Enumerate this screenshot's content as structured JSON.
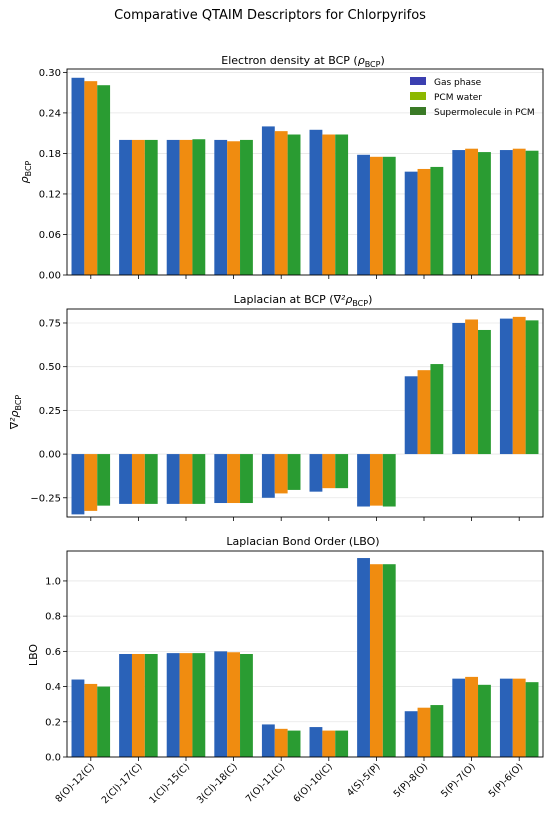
{
  "figure_title": "Comparative QTAIM Descriptors for Chlorpyrifos",
  "colors": {
    "gas": "#2a62b8",
    "pcm": "#f08c10",
    "super": "#2a9c32",
    "legend_gas": "#3b3fb0",
    "legend_pcm": "#8cb800",
    "legend_super": "#3a7a26"
  },
  "chart_data": [
    {
      "type": "bar",
      "title": "Electron density at BCP (ρBCP)",
      "title_main": "Electron density at BCP (",
      "title_sym": "ρ",
      "title_sub": "BCP",
      "title_end": ")",
      "ylabel": "ρBCP",
      "ylabel_main": "ρ",
      "ylabel_sub": "BCP",
      "ylim": [
        0,
        0.305
      ],
      "yticks": [
        "0.00",
        "0.06",
        "0.12",
        "0.18",
        "0.24",
        "0.30"
      ],
      "legend": {
        "placement": "top-right",
        "entries": [
          "Gas phase",
          "PCM water",
          "Supermolecule in PCM"
        ]
      },
      "categories": [
        "8(O)-12(C)",
        "2(Cl)-17(C)",
        "1(Cl)-15(C)",
        "3(Cl)-18(C)",
        "7(O)-11(C)",
        "6(O)-10(C)",
        "4(S)-5(P)",
        "5(P)-8(O)",
        "5(P)-7(O)",
        "5(P)-6(O)"
      ],
      "series": [
        {
          "name": "Gas phase",
          "values": [
            0.292,
            0.2,
            0.2,
            0.2,
            0.22,
            0.215,
            0.178,
            0.153,
            0.185,
            0.185
          ]
        },
        {
          "name": "PCM water",
          "values": [
            0.287,
            0.2,
            0.2,
            0.198,
            0.213,
            0.208,
            0.175,
            0.157,
            0.187,
            0.187
          ]
        },
        {
          "name": "Supermolecule in PCM",
          "values": [
            0.281,
            0.2,
            0.201,
            0.2,
            0.208,
            0.208,
            0.175,
            0.16,
            0.182,
            0.184
          ]
        }
      ]
    },
    {
      "type": "bar",
      "title": "Laplacian at BCP (∇²ρBCP)",
      "title_main": "Laplacian at BCP (",
      "title_sym": "∇²ρ",
      "title_sub": "BCP",
      "title_end": ")",
      "ylabel": "∇²ρBCP",
      "ylabel_main": "∇²ρ",
      "ylabel_sub": "BCP",
      "ylim": [
        -0.36,
        0.83
      ],
      "yticks": [
        "−0.25",
        "0.00",
        "0.25",
        "0.50",
        "0.75"
      ],
      "categories": [
        "8(O)-12(C)",
        "2(Cl)-17(C)",
        "1(Cl)-15(C)",
        "3(Cl)-18(C)",
        "7(O)-11(C)",
        "6(O)-10(C)",
        "4(S)-5(P)",
        "5(P)-8(O)",
        "5(P)-7(O)",
        "5(P)-6(O)"
      ],
      "series": [
        {
          "name": "Gas phase",
          "values": [
            -0.345,
            -0.285,
            -0.285,
            -0.28,
            -0.25,
            -0.215,
            -0.3,
            0.445,
            0.75,
            0.775
          ]
        },
        {
          "name": "PCM water",
          "values": [
            -0.325,
            -0.285,
            -0.285,
            -0.28,
            -0.225,
            -0.195,
            -0.295,
            0.48,
            0.77,
            0.785
          ]
        },
        {
          "name": "Supermolecule in PCM",
          "values": [
            -0.295,
            -0.285,
            -0.285,
            -0.28,
            -0.205,
            -0.195,
            -0.3,
            0.515,
            0.71,
            0.765
          ]
        }
      ]
    },
    {
      "type": "bar",
      "title": "Laplacian Bond Order (LBO)",
      "ylabel": "LBO",
      "ylim": [
        0,
        1.17
      ],
      "yticks": [
        "0.0",
        "0.2",
        "0.4",
        "0.6",
        "0.8",
        "1.0"
      ],
      "categories": [
        "8(O)-12(C)",
        "2(Cl)-17(C)",
        "1(Cl)-15(C)",
        "3(Cl)-18(C)",
        "7(O)-11(C)",
        "6(O)-10(C)",
        "4(S)-5(P)",
        "5(P)-8(O)",
        "5(P)-7(O)",
        "5(P)-6(O)"
      ],
      "series": [
        {
          "name": "Gas phase",
          "values": [
            0.44,
            0.585,
            0.59,
            0.6,
            0.185,
            0.17,
            1.13,
            0.26,
            0.445,
            0.445
          ]
        },
        {
          "name": "PCM water",
          "values": [
            0.415,
            0.585,
            0.59,
            0.595,
            0.16,
            0.15,
            1.095,
            0.28,
            0.455,
            0.445
          ]
        },
        {
          "name": "Supermolecule in PCM",
          "values": [
            0.4,
            0.585,
            0.59,
            0.585,
            0.15,
            0.15,
            1.095,
            0.295,
            0.41,
            0.425
          ]
        }
      ]
    }
  ]
}
